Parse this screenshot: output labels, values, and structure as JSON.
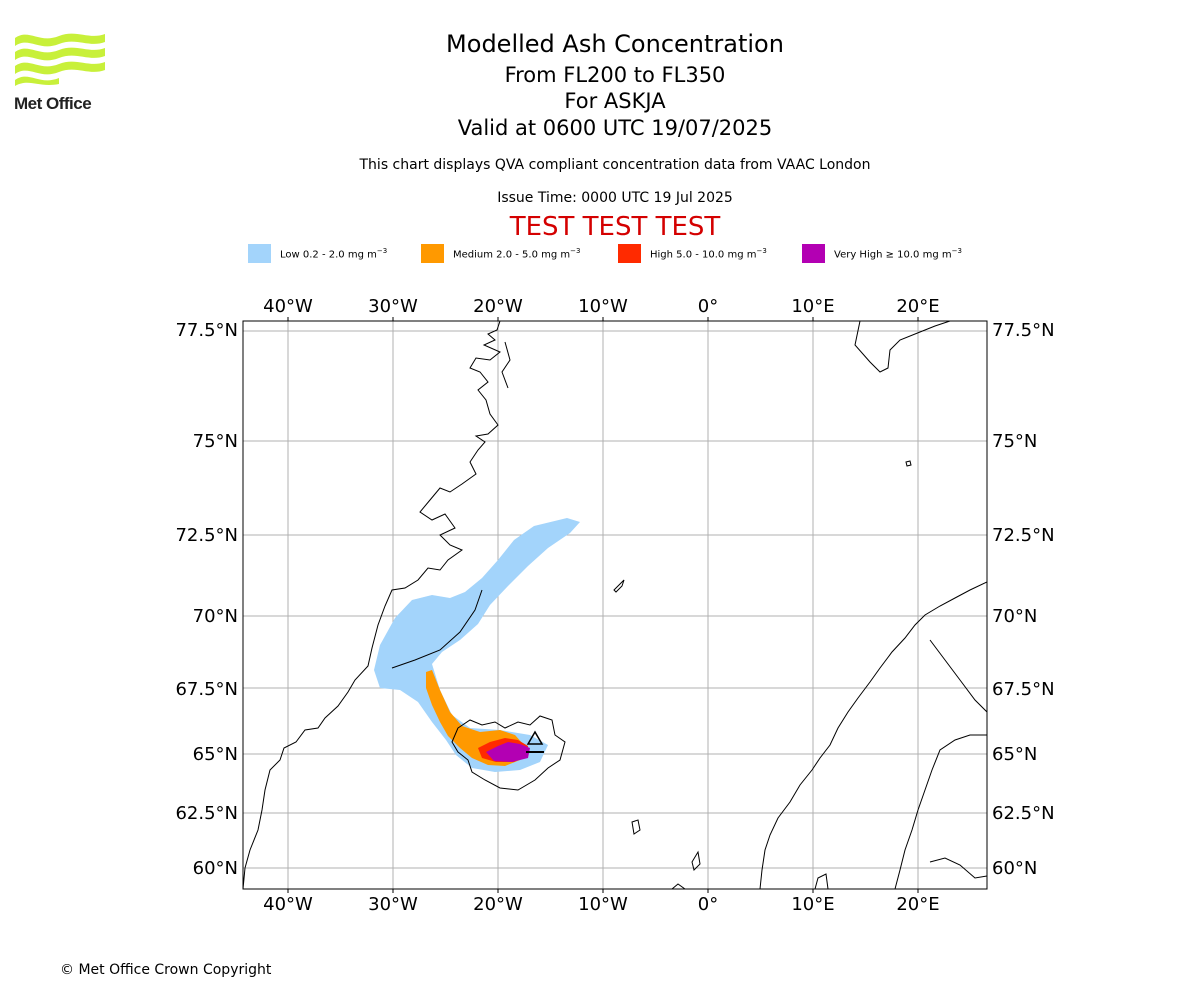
{
  "header": {
    "logo_text": "Met Office",
    "title": "Modelled Ash Concentration",
    "subtitle_level": "From FL200 to FL350",
    "subtitle_volcano": "For ASKJA",
    "subtitle_valid": "Valid at 0600 UTC 19/07/2025",
    "note": "This chart displays QVA compliant concentration data from VAAC London",
    "issue_time": "Issue Time: 0000 UTC 19 Jul 2025",
    "test_banner": "TEST TEST TEST"
  },
  "legend": [
    {
      "label": "Low 0.2 - 2.0 mg m",
      "unit_sup": "−3",
      "color": "#a3d4fb"
    },
    {
      "label": "Medium 2.0 - 5.0 mg m",
      "unit_sup": "−3",
      "color": "#ff9900"
    },
    {
      "label": "High 5.0 - 10.0 mg m",
      "unit_sup": "−3",
      "color": "#ff2a00"
    },
    {
      "label": "Very High  ≥  10.0 mg m",
      "unit_sup": "−3",
      "color": "#b300b3"
    }
  ],
  "map": {
    "lon_labels": [
      "40°W",
      "30°W",
      "20°W",
      "10°W",
      "0°",
      "10°E",
      "20°E"
    ],
    "lat_labels": [
      "77.5°N",
      "75°N",
      "72.5°N",
      "70°N",
      "67.5°N",
      "65°N",
      "62.5°N",
      "60°N"
    ],
    "volcano_marker": "triangle",
    "grid": true
  },
  "footer": {
    "copyright": "© Met Office Crown Copyright"
  }
}
